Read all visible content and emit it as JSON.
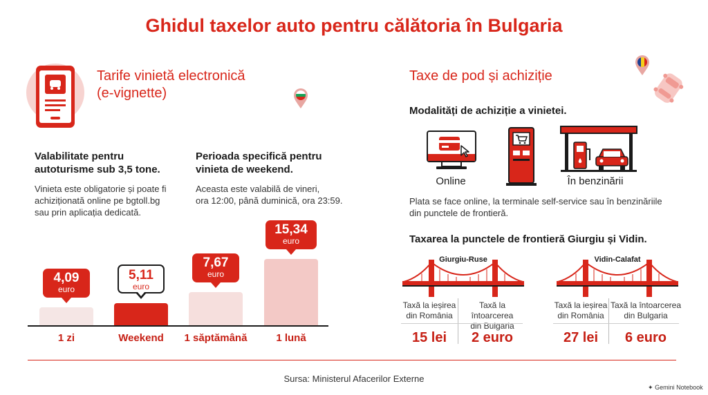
{
  "title": "Ghidul taxelor auto pentru călătoria în Bulgaria",
  "left": {
    "heading_line1": "Tarife vinietă electronică",
    "heading_line2": "(e-vignette)",
    "col1": {
      "title_line1": "Valabilitate pentru",
      "title_line2": "autoturisme sub 3,5 tone.",
      "text_line1": "Vinieta este obligatorie și poate fi",
      "text_line2": "achiziționată online pe bgtoll.bg",
      "text_line3": "sau prin aplicația dedicată."
    },
    "col2": {
      "title_line1": "Perioada specifică pentru",
      "title_line2": "vinieta de weekend.",
      "text_line1": "Aceasta este valabilă de vineri,",
      "text_line2": "ora 12:00, până duminică, ora 23:59."
    }
  },
  "chart_data": {
    "type": "bar",
    "categories": [
      "1 zi",
      "Weekend",
      "1 săptămână",
      "1 lună"
    ],
    "values": [
      4.09,
      5.11,
      7.67,
      15.34
    ],
    "value_labels": [
      "4,09",
      "5,11",
      "7,67",
      "15,34"
    ],
    "unit": "euro",
    "bar_colors": [
      "#f5e6e5",
      "#d8261a",
      "#f6dfdd",
      "#f3c9c6"
    ],
    "ylim": [
      0,
      16
    ]
  },
  "right": {
    "heading": "Taxe de pod și achiziție",
    "purchase_title": "Modalități de achiziție a vinietei.",
    "method_online": "Online",
    "method_station": "În benzinării",
    "purchase_text_line1": "Plata se face online, la terminale self-service sau în benzinăriile",
    "purchase_text_line2": "din punctele de frontieră.",
    "border_title": "Taxarea la punctele de frontieră Giurgiu și Vidin.",
    "bridges": [
      {
        "name": "Giurgiu-Ruse",
        "exit_label_line1": "Taxă la ieșirea",
        "exit_label_line2": "din România",
        "return_label_line1": "Taxă la întoarcerea",
        "return_label_line2": "din Bulgaria",
        "exit_price": "15 lei",
        "return_price": "2 euro"
      },
      {
        "name": "Vidin-Calafat",
        "exit_label_line1": "Taxă la ieșirea",
        "exit_label_line2": "din România",
        "return_label_line1": "Taxă la întoarcerea",
        "return_label_line2": "din Bulgaria",
        "exit_price": "27 lei",
        "return_price": "6 euro"
      }
    ]
  },
  "source": "Sursa: Ministerul Afacerilor Externe",
  "watermark": "Gemini Notebook",
  "icons": {
    "phone": "phone-car-icon",
    "pin_bg": "bulgaria-pin-icon",
    "pin_ro": "romania-pin-icon",
    "car": "car-icon",
    "monitor": "monitor-card-icon",
    "terminal": "self-service-terminal-icon",
    "station": "gas-station-icon",
    "bridge": "suspension-bridge-icon"
  },
  "colors": {
    "accent": "#d8261a",
    "dark_red": "#c61f14",
    "light_red": "#f3c9c6"
  }
}
